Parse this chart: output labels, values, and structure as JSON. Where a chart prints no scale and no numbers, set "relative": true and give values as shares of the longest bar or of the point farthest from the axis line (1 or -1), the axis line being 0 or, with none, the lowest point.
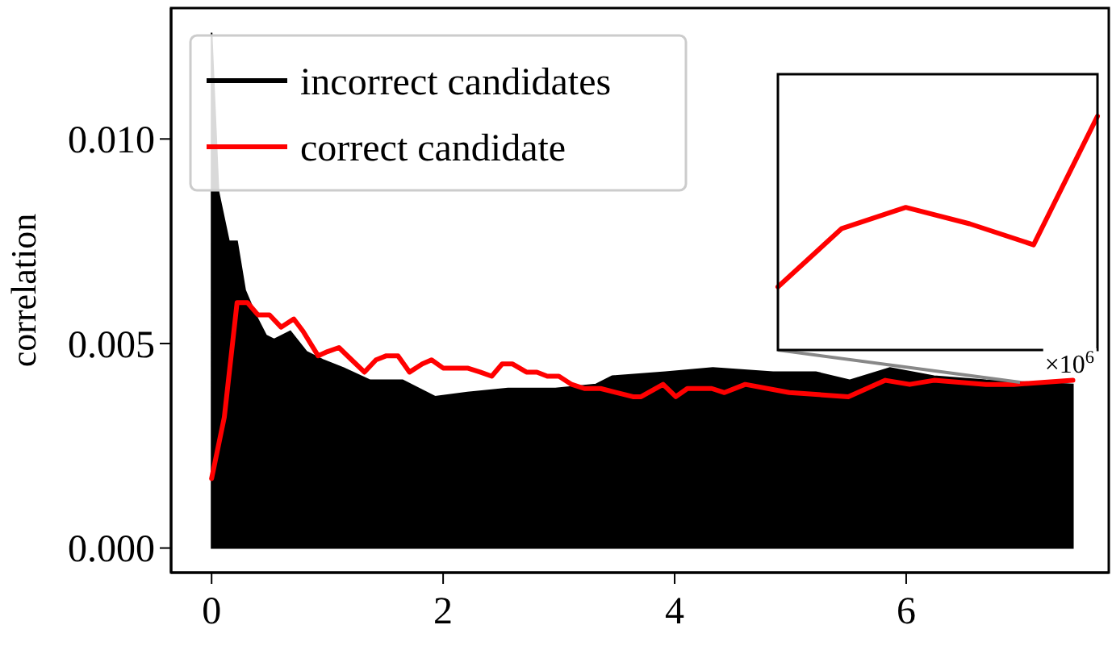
{
  "chart_data": [
    {
      "type": "line",
      "ylabel": "correlation",
      "xlim": [
        -0.35,
        7.75
      ],
      "ylim": [
        -0.0006,
        0.0132
      ],
      "xticks": [
        0,
        2,
        4,
        6
      ],
      "yticks": [
        {
          "value": 0,
          "label": "0.000"
        },
        {
          "value": 0.005,
          "label": "0.005"
        },
        {
          "value": 0.01,
          "label": "0.010"
        }
      ],
      "legend": "top left",
      "grid": false,
      "series": [
        {
          "name": "incorrect candidates",
          "type": "area",
          "color": "#000000",
          "x": [
            0,
            0.06,
            0.15,
            0.22,
            0.29,
            0.38,
            0.47,
            0.54,
            0.68,
            0.82,
            0.96,
            1.14,
            1.37,
            1.65,
            1.93,
            2.21,
            2.56,
            2.97,
            3.32,
            3.46,
            3.92,
            4.33,
            4.85,
            5.22,
            5.51,
            5.86,
            6.24,
            6.69,
            7.44
          ],
          "values": [
            0.0126,
            0.0087,
            0.0075,
            0.0075,
            0.0063,
            0.0057,
            0.0052,
            0.0051,
            0.0053,
            0.0048,
            0.0046,
            0.0044,
            0.0041,
            0.0041,
            0.0037,
            0.0038,
            0.0039,
            0.0039,
            0.004,
            0.0042,
            0.0043,
            0.0044,
            0.0043,
            0.0043,
            0.0041,
            0.0044,
            0.0042,
            0.0041,
            0.004
          ]
        },
        {
          "name": "correct candidate",
          "color": "#ff0000",
          "x": [
            0,
            0.11,
            0.22,
            0.31,
            0.4,
            0.5,
            0.6,
            0.71,
            0.79,
            0.92,
            1.0,
            1.1,
            1.21,
            1.32,
            1.42,
            1.51,
            1.61,
            1.71,
            1.82,
            1.9,
            2.0,
            2.1,
            2.21,
            2.32,
            2.42,
            2.51,
            2.6,
            2.72,
            2.81,
            2.9,
            3.0,
            3.11,
            3.22,
            3.36,
            3.5,
            3.64,
            3.71,
            3.9,
            4.01,
            4.11,
            4.32,
            4.43,
            4.61,
            4.99,
            5.5,
            5.82,
            6.03,
            6.24,
            6.69,
            6.93,
            7.44
          ],
          "values": [
            0.0017,
            0.0032,
            0.006,
            0.006,
            0.0057,
            0.0057,
            0.0054,
            0.0056,
            0.0053,
            0.0047,
            0.0048,
            0.0049,
            0.0046,
            0.0043,
            0.0046,
            0.0047,
            0.0047,
            0.0043,
            0.0045,
            0.0046,
            0.0044,
            0.0044,
            0.0044,
            0.0043,
            0.0042,
            0.0045,
            0.0045,
            0.0043,
            0.0043,
            0.0042,
            0.0042,
            0.004,
            0.0039,
            0.0039,
            0.0038,
            0.0037,
            0.0037,
            0.004,
            0.0037,
            0.0039,
            0.0039,
            0.0038,
            0.004,
            0.0038,
            0.0037,
            0.0041,
            0.004,
            0.0041,
            0.004,
            0.004,
            0.0041
          ]
        }
      ]
    },
    {
      "type": "line",
      "relative": true,
      "categories": [
        null,
        null,
        null,
        null,
        null,
        null
      ],
      "annotations": [
        "×10$^{6}$"
      ],
      "series": [
        {
          "color": "#ff0000",
          "values": [
            0.27,
            0.52,
            0.61,
            0.54,
            0.45,
            1.0
          ]
        }
      ]
    }
  ]
}
